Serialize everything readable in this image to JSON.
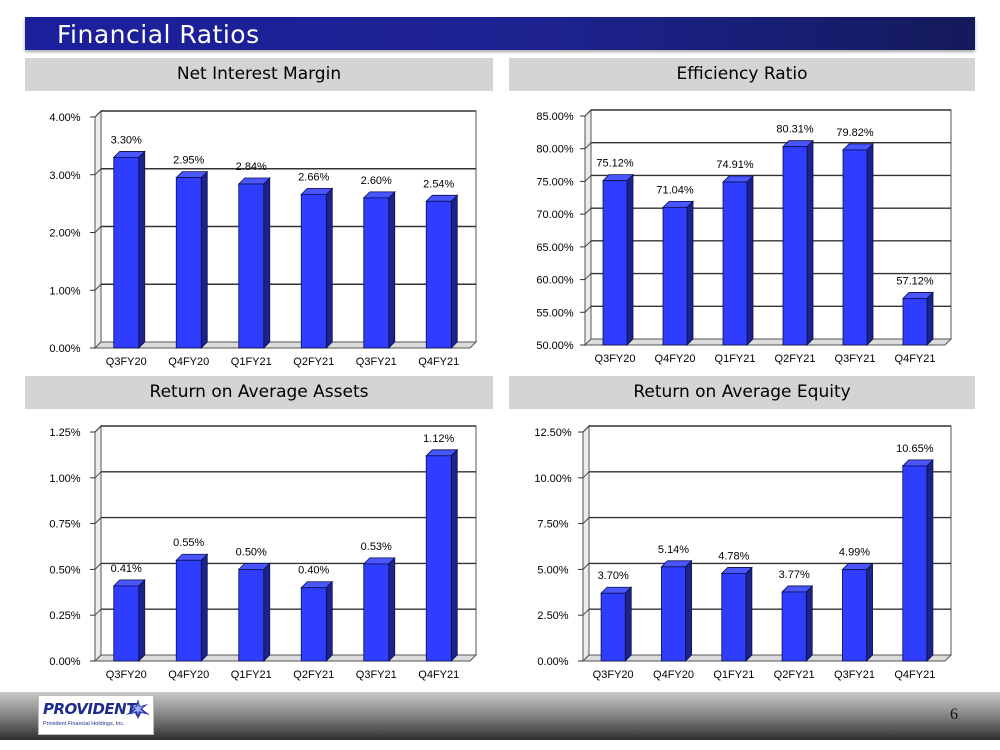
{
  "page": {
    "title": "Financial Ratios",
    "page_number": "6",
    "logo": {
      "name": "PROVIDENT",
      "subtitle": "Provident Financial Holdings, Inc."
    }
  },
  "colors": {
    "bar_front": "#2f3dff",
    "bar_side": "#1c238a",
    "bar_top": "#4a56ff",
    "title_bar": "#1d2290"
  },
  "chart_data": [
    {
      "type": "bar",
      "title": "Net Interest Margin",
      "categories": [
        "Q3FY20",
        "Q4FY20",
        "Q1FY21",
        "Q2FY21",
        "Q3FY21",
        "Q4FY21"
      ],
      "values": [
        3.3,
        2.95,
        2.84,
        2.66,
        2.6,
        2.54
      ],
      "labels": [
        "3.30%",
        "2.95%",
        "2.84%",
        "2.66%",
        "2.60%",
        "2.54%"
      ],
      "ylim": [
        0,
        4
      ],
      "yticks": [
        "0.00%",
        "1.00%",
        "2.00%",
        "3.00%",
        "4.00%"
      ],
      "grid": true
    },
    {
      "type": "bar",
      "title": "Efficiency Ratio",
      "categories": [
        "Q3FY20",
        "Q4FY20",
        "Q1FY21",
        "Q2FY21",
        "Q3FY21",
        "Q4FY21"
      ],
      "values": [
        75.12,
        71.04,
        74.91,
        80.31,
        79.82,
        57.12
      ],
      "labels": [
        "75.12%",
        "71.04%",
        "74.91%",
        "80.31%",
        "79.82%",
        "57.12%"
      ],
      "ylim": [
        50,
        85
      ],
      "yticks": [
        "50.00%",
        "55.00%",
        "60.00%",
        "65.00%",
        "70.00%",
        "75.00%",
        "80.00%",
        "85.00%"
      ],
      "grid": true
    },
    {
      "type": "bar",
      "title": "Return on Average Assets",
      "categories": [
        "Q3FY20",
        "Q4FY20",
        "Q1FY21",
        "Q2FY21",
        "Q3FY21",
        "Q4FY21"
      ],
      "values": [
        0.41,
        0.55,
        0.5,
        0.4,
        0.53,
        1.12
      ],
      "labels": [
        "0.41%",
        "0.55%",
        "0.50%",
        "0.40%",
        "0.53%",
        "1.12%"
      ],
      "ylim": [
        0,
        1.25
      ],
      "yticks": [
        "0.00%",
        "0.25%",
        "0.50%",
        "0.75%",
        "1.00%",
        "1.25%"
      ],
      "grid": true
    },
    {
      "type": "bar",
      "title": "Return on Average Equity",
      "categories": [
        "Q3FY20",
        "Q4FY20",
        "Q1FY21",
        "Q2FY21",
        "Q3FY21",
        "Q4FY21"
      ],
      "values": [
        3.7,
        5.14,
        4.78,
        3.77,
        4.99,
        10.65
      ],
      "labels": [
        "3.70%",
        "5.14%",
        "4.78%",
        "3.77%",
        "4.99%",
        "10.65%"
      ],
      "ylim": [
        0,
        12.5
      ],
      "yticks": [
        "0.00%",
        "2.50%",
        "5.00%",
        "7.50%",
        "10.00%",
        "12.50%"
      ],
      "grid": true
    }
  ]
}
